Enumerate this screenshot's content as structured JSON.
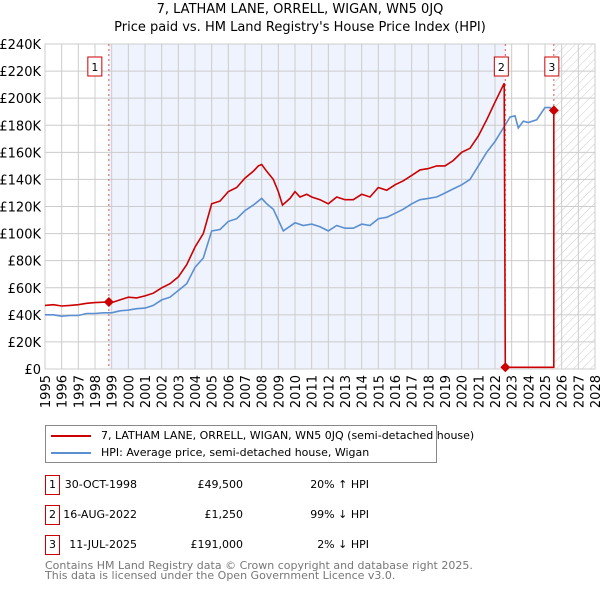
{
  "title": "7, LATHAM LANE, ORRELL, WIGAN, WN5 0JQ",
  "subtitle": "Price paid vs. HM Land Registry's House Price Index (HPI)",
  "chart_data": {
    "type": "line",
    "xlim": [
      1995,
      2028
    ],
    "ylim": [
      0,
      240000
    ],
    "yticks": [
      0,
      20000,
      40000,
      60000,
      80000,
      100000,
      120000,
      140000,
      160000,
      180000,
      200000,
      220000,
      240000
    ],
    "ytick_labels": [
      "£0",
      "£20K",
      "£40K",
      "£60K",
      "£80K",
      "£100K",
      "£120K",
      "£140K",
      "£160K",
      "£180K",
      "£200K",
      "£220K",
      "£240K"
    ],
    "xticks": [
      "1995",
      "1996",
      "1997",
      "1998",
      "1999",
      "2000",
      "2001",
      "2002",
      "2003",
      "2004",
      "2005",
      "2006",
      "2007",
      "2008",
      "2009",
      "2010",
      "2011",
      "2012",
      "2013",
      "2014",
      "2015",
      "2016",
      "2017",
      "2018",
      "2019",
      "2020",
      "2021",
      "2022",
      "2023",
      "2024",
      "2025",
      "2026",
      "2027",
      "2028"
    ],
    "shaded_ownership": [
      1998.83,
      2022.62
    ],
    "forecast_hatch_from": 2025.53,
    "series": [
      {
        "name": "7, LATHAM LANE, ORRELL, WIGAN, WN5 0JQ (semi-detached house)",
        "color": "#cc0000",
        "x": [
          1995,
          1995.5,
          1996,
          1996.5,
          1997,
          1997.5,
          1998,
          1998.5,
          1998.83,
          1999,
          1999.5,
          2000,
          2000.5,
          2001,
          2001.5,
          2002,
          2002.5,
          2003,
          2003.5,
          2004,
          2004.5,
          2005,
          2005.5,
          2006,
          2006.5,
          2007,
          2007.5,
          2007.8,
          2008,
          2008.3,
          2008.7,
          2009,
          2009.25,
          2009.7,
          2010,
          2010.3,
          2010.7,
          2011,
          2011.5,
          2012,
          2012.5,
          2013,
          2013.5,
          2014,
          2014.5,
          2015,
          2015.5,
          2016,
          2016.5,
          2017,
          2017.5,
          2018,
          2018.5,
          2019,
          2019.5,
          2020,
          2020.5,
          2021,
          2021.5,
          2022,
          2022.55,
          2022.62,
          2025.53,
          2025.53
        ],
        "y": [
          47000,
          47500,
          46500,
          47000,
          47500,
          48500,
          49000,
          49300,
          49500,
          49000,
          51000,
          53000,
          52500,
          54000,
          56000,
          60000,
          63000,
          68000,
          77000,
          90000,
          100000,
          122000,
          124000,
          131000,
          134000,
          141000,
          146000,
          150000,
          151000,
          146000,
          140000,
          131000,
          121000,
          126000,
          131000,
          127000,
          129000,
          127000,
          125000,
          122000,
          127000,
          125000,
          125000,
          129000,
          127000,
          134000,
          132000,
          136000,
          139000,
          143000,
          147000,
          148000,
          150000,
          150000,
          154000,
          160000,
          163000,
          172000,
          184000,
          197000,
          211000,
          1250,
          1250,
          191000
        ]
      },
      {
        "name": "HPI: Average price, semi-detached house, Wigan",
        "color": "#5b8fd1",
        "x": [
          1995,
          1995.5,
          1996,
          1996.5,
          1997,
          1997.5,
          1998,
          1998.5,
          1999,
          1999.5,
          2000,
          2000.5,
          2001,
          2001.5,
          2002,
          2002.5,
          2003,
          2003.5,
          2004,
          2004.5,
          2005,
          2005.5,
          2006,
          2006.5,
          2007,
          2007.5,
          2008,
          2008.3,
          2008.7,
          2009,
          2009.3,
          2010,
          2010.5,
          2011,
          2011.5,
          2012,
          2012.5,
          2013,
          2013.5,
          2014,
          2014.5,
          2015,
          2015.5,
          2016,
          2016.5,
          2017,
          2017.5,
          2018,
          2018.5,
          2019,
          2019.5,
          2020,
          2020.5,
          2021,
          2021.5,
          2022,
          2022.5,
          2022.9,
          2023.2,
          2023.4,
          2023.7,
          2024,
          2024.5,
          2025,
          2025.3,
          2025.53
        ],
        "y": [
          40000,
          40000,
          39000,
          39500,
          39500,
          41000,
          41000,
          41500,
          41500,
          43000,
          43500,
          44500,
          45000,
          47000,
          51000,
          53000,
          58000,
          63000,
          75000,
          82000,
          102000,
          103000,
          109000,
          111000,
          117000,
          121000,
          126000,
          122000,
          118000,
          110000,
          102000,
          108000,
          106000,
          107000,
          105000,
          102000,
          106000,
          104000,
          104000,
          107000,
          106000,
          111000,
          112000,
          115000,
          118000,
          122000,
          125000,
          126000,
          127000,
          130000,
          133000,
          136000,
          140000,
          150000,
          160000,
          168000,
          178000,
          186000,
          187000,
          178000,
          183000,
          182000,
          184000,
          193000,
          193000,
          191000
        ]
      }
    ],
    "annotations": [
      {
        "label": "1",
        "x": 1998.83,
        "y": 49500
      },
      {
        "label": "2",
        "x": 2022.62,
        "y": 1250
      },
      {
        "label": "3",
        "x": 2025.53,
        "y": 191000
      }
    ]
  },
  "legend": [
    "7, LATHAM LANE, ORRELL, WIGAN, WN5 0JQ (semi-detached house)",
    "HPI: Average price, semi-detached house, Wigan"
  ],
  "transactions": [
    {
      "n": "1",
      "date": "30-OCT-1998",
      "price": "£49,500",
      "hpi": "20% ↑ HPI"
    },
    {
      "n": "2",
      "date": "16-AUG-2022",
      "price": "£1,250",
      "hpi": "99% ↓ HPI"
    },
    {
      "n": "3",
      "date": "11-JUL-2025",
      "price": "£191,000",
      "hpi": "2% ↓ HPI"
    }
  ],
  "footer": [
    "Contains HM Land Registry data © Crown copyright and database right 2025.",
    "This data is licensed under the Open Government Licence v3.0."
  ]
}
